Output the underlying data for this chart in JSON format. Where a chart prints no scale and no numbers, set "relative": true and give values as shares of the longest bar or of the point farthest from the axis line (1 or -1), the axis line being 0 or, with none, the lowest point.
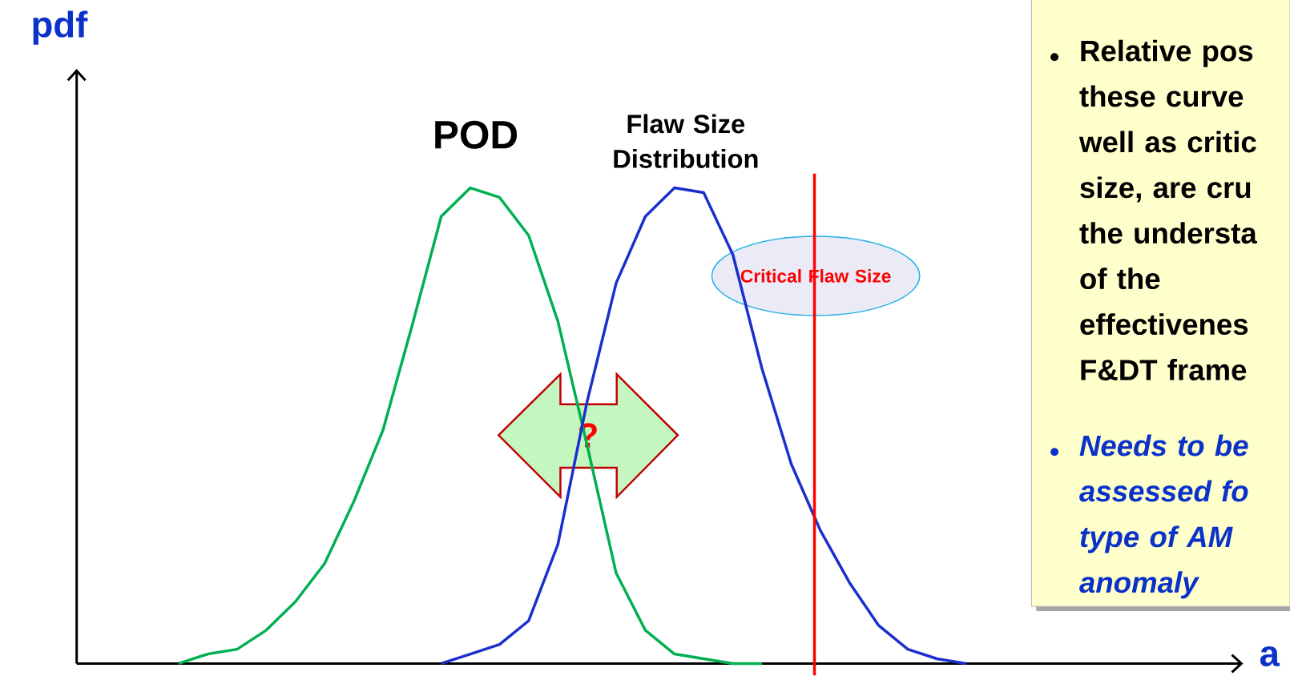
{
  "chart_data": {
    "type": "line",
    "relative": true,
    "ylabel": "pdf",
    "xlabel": "a",
    "tick_labels": false,
    "categories": [
      null,
      null,
      null,
      null,
      null,
      null,
      null,
      null,
      null,
      null,
      null,
      null,
      null,
      null,
      null,
      null,
      null,
      null,
      null,
      null,
      null,
      null,
      null,
      null,
      null,
      null,
      null,
      null,
      null,
      null,
      null,
      null,
      null,
      null,
      null,
      null,
      null,
      null,
      null,
      null
    ],
    "series": [
      {
        "name": "POD",
        "color": "#00b050",
        "values": [
          null,
          null,
          null,
          0,
          0.02,
          0.03,
          0.07,
          0.13,
          0.21,
          0.34,
          0.49,
          0.71,
          0.94,
          1,
          0.98,
          0.9,
          0.72,
          0.46,
          0.19,
          0.07,
          0.02,
          0.01,
          0,
          0,
          null,
          null,
          null,
          null,
          null,
          null,
          null,
          null,
          null,
          null,
          null,
          null,
          null,
          null,
          null,
          null
        ]
      },
      {
        "name": "Flaw Size Distribution",
        "color": "#1a2fcc",
        "values": [
          null,
          null,
          null,
          null,
          null,
          null,
          null,
          null,
          null,
          null,
          null,
          null,
          0,
          0.02,
          0.04,
          0.09,
          0.25,
          0.55,
          0.8,
          0.94,
          1,
          0.99,
          0.86,
          0.62,
          0.42,
          0.28,
          0.17,
          0.08,
          0.03,
          0.01,
          0,
          null,
          null,
          null,
          null,
          null,
          null,
          null,
          null,
          null
        ]
      }
    ],
    "annotations": [
      "?",
      "Relative pos these curve well as critic size, are cru the understa of the effectivenes F&DT frame",
      "Needs to be assessed fo type of AM anomaly",
      "Critical Flaw Size"
    ]
  }
}
